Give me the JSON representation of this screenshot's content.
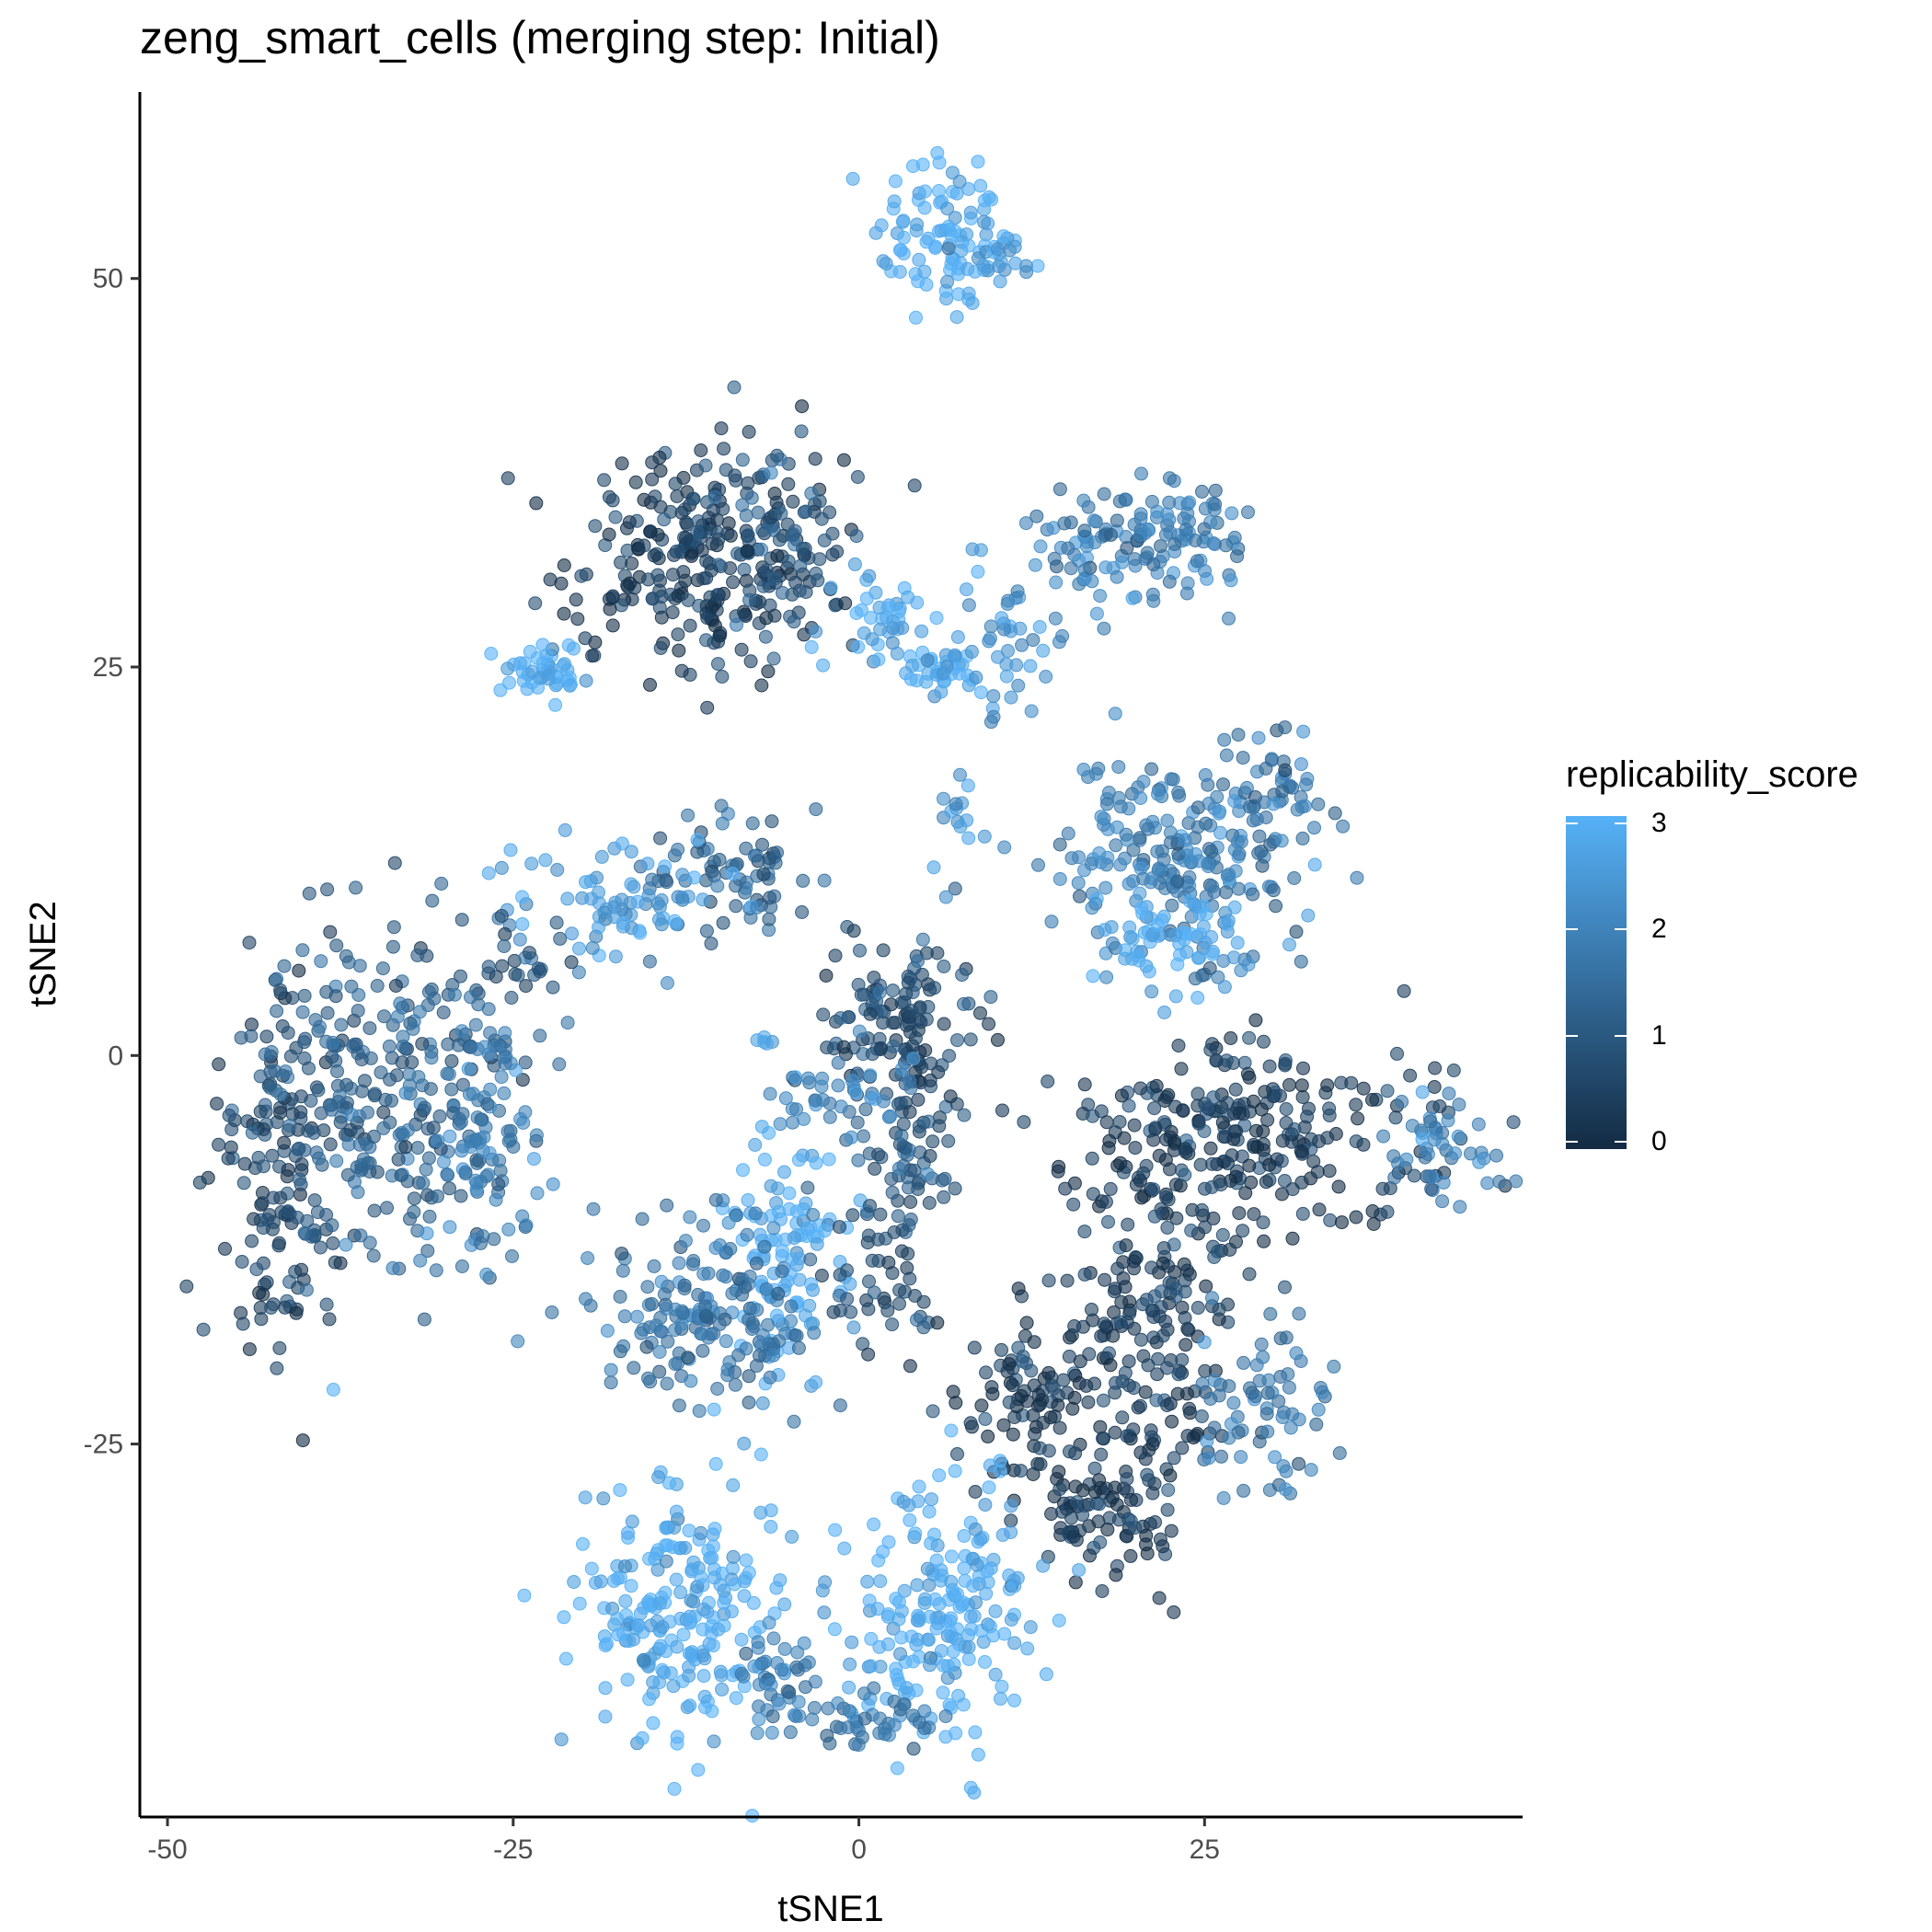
{
  "chart_data": {
    "type": "scatter",
    "title": "zeng_smart_cells (merging step: Initial)",
    "xlabel": "tSNE1",
    "ylabel": "tSNE2",
    "xlim": [
      -52,
      48
    ],
    "ylim": [
      -49,
      62
    ],
    "x_ticks": [
      -50,
      -25,
      0,
      25
    ],
    "y_ticks": [
      -25,
      0,
      25,
      50
    ],
    "x_tick_labels": [
      "-50",
      "-25",
      "0",
      "25"
    ],
    "y_tick_labels": [
      "-25",
      "0",
      "25",
      "50"
    ],
    "grid": false,
    "point_alpha": 0.6,
    "color_scale": {
      "name": "replicability_score",
      "min": 0,
      "max": 3,
      "low_color": "#132b43",
      "high_color": "#56b1f7",
      "ticks": [
        0,
        1,
        2,
        3
      ],
      "tick_labels": [
        "0",
        "1",
        "2",
        "3"
      ]
    },
    "legend_position": "right",
    "clusters": [
      {
        "cx": 6,
        "cy": 53,
        "sx": 2.5,
        "sy": 3,
        "n": 90,
        "score": 2.9
      },
      {
        "cx": 10,
        "cy": 51,
        "sx": 1.5,
        "sy": 1.2,
        "n": 25,
        "score": 2.6
      },
      {
        "cx": -11,
        "cy": 32,
        "sx": 5,
        "sy": 3.5,
        "n": 280,
        "score": 0.4
      },
      {
        "cx": -6,
        "cy": 34,
        "sx": 2,
        "sy": 3,
        "n": 50,
        "score": 1.2
      },
      {
        "cx": -23,
        "cy": 24.5,
        "sx": 1.5,
        "sy": 1.2,
        "n": 45,
        "score": 2.8
      },
      {
        "cx": 2,
        "cy": 28,
        "sx": 2.2,
        "sy": 1.5,
        "n": 40,
        "score": 2.7
      },
      {
        "cx": 6,
        "cy": 24.5,
        "sx": 1.8,
        "sy": 1,
        "n": 35,
        "score": 2.9
      },
      {
        "cx": 11,
        "cy": 27,
        "sx": 2,
        "sy": 2.5,
        "n": 45,
        "score": 2.3
      },
      {
        "cx": 17,
        "cy": 33,
        "sx": 3,
        "sy": 2,
        "n": 70,
        "score": 1.9
      },
      {
        "cx": 24,
        "cy": 33,
        "sx": 2.5,
        "sy": 2,
        "n": 70,
        "score": 1.9
      },
      {
        "cx": -9,
        "cy": 12,
        "sx": 3,
        "sy": 2.5,
        "n": 70,
        "score": 1.3
      },
      {
        "cx": -17,
        "cy": 10,
        "sx": 4,
        "sy": 2,
        "n": 80,
        "score": 2.5
      },
      {
        "cx": -25,
        "cy": 6,
        "sx": 3,
        "sy": 1.5,
        "n": 30,
        "score": 0.8
      },
      {
        "cx": -42,
        "cy": -7,
        "sx": 2.5,
        "sy": 6,
        "n": 150,
        "score": 0.6
      },
      {
        "cx": -34,
        "cy": -2,
        "sx": 5,
        "sy": 5,
        "n": 260,
        "score": 1.2
      },
      {
        "cx": -27,
        "cy": -5,
        "sx": 2.5,
        "sy": 5,
        "n": 90,
        "score": 1.8
      },
      {
        "cx": 3,
        "cy": 2,
        "sx": 3,
        "sy": 3,
        "n": 140,
        "score": 0.7
      },
      {
        "cx": 4,
        "cy": -7,
        "sx": 2,
        "sy": 3,
        "n": 50,
        "score": 0.9
      },
      {
        "cx": -1,
        "cy": -3,
        "sx": 2.5,
        "sy": 1.5,
        "n": 40,
        "score": 2.0
      },
      {
        "cx": -5,
        "cy": -13,
        "sx": 2.5,
        "sy": 4,
        "n": 110,
        "score": 2.9
      },
      {
        "cx": -11,
        "cy": -17,
        "sx": 4,
        "sy": 3,
        "n": 170,
        "score": 1.6
      },
      {
        "cx": 1,
        "cy": -15,
        "sx": 2,
        "sy": 2.5,
        "n": 50,
        "score": 0.8
      },
      {
        "cx": 23,
        "cy": 13,
        "sx": 5,
        "sy": 3,
        "n": 220,
        "score": 1.8
      },
      {
        "cx": 23,
        "cy": 7.5,
        "sx": 2.5,
        "sy": 1.5,
        "n": 60,
        "score": 2.8
      },
      {
        "cx": 30,
        "cy": 17,
        "sx": 2,
        "sy": 2,
        "n": 40,
        "score": 1.7
      },
      {
        "cx": 29,
        "cy": -5,
        "sx": 7,
        "sy": 3,
        "n": 260,
        "score": 0.3
      },
      {
        "cx": 42,
        "cy": -6,
        "sx": 2,
        "sy": 1.5,
        "n": 45,
        "score": 1.8
      },
      {
        "cx": 21,
        "cy": -17,
        "sx": 3,
        "sy": 6,
        "n": 190,
        "score": 0.4
      },
      {
        "cx": 12,
        "cy": -22,
        "sx": 2.5,
        "sy": 3,
        "n": 90,
        "score": 0.3
      },
      {
        "cx": 18,
        "cy": -29,
        "sx": 2.5,
        "sy": 2.5,
        "n": 90,
        "score": 0.3
      },
      {
        "cx": 29,
        "cy": -23,
        "sx": 2.5,
        "sy": 3,
        "n": 70,
        "score": 1.7
      },
      {
        "cx": -13,
        "cy": -36,
        "sx": 3.5,
        "sy": 4,
        "n": 220,
        "score": 2.9
      },
      {
        "cx": -6,
        "cy": -40,
        "sx": 2,
        "sy": 1.5,
        "n": 45,
        "score": 1.8
      },
      {
        "cx": 6,
        "cy": -36,
        "sx": 3.5,
        "sy": 4,
        "n": 200,
        "score": 2.9
      },
      {
        "cx": 1,
        "cy": -42.5,
        "sx": 2,
        "sy": 1,
        "n": 40,
        "score": 1.7
      },
      {
        "cx": 7,
        "cy": 16,
        "sx": 0.8,
        "sy": 1,
        "n": 12,
        "score": 2.3
      },
      {
        "cx": -7,
        "cy": 1,
        "sx": 0.5,
        "sy": 0.3,
        "n": 5,
        "score": 2.7
      },
      {
        "cx": -38,
        "cy": -21.5,
        "sx": 0.2,
        "sy": 0.2,
        "n": 1,
        "score": 3.0
      }
    ]
  }
}
